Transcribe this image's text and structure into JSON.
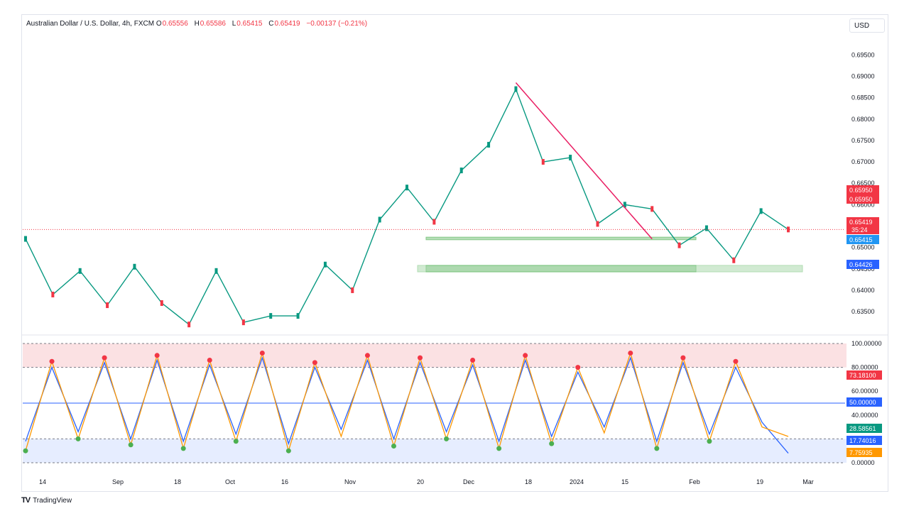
{
  "header": {
    "symbol": "Australian Dollar / U.S. Dollar, 4h, FXCM",
    "open_label": "O",
    "open": "0.65556",
    "high_label": "H",
    "high": "0.65586",
    "low_label": "L",
    "low": "0.65415",
    "close_label": "C",
    "close": "0.65419",
    "change": "−0.00137 (−0.21%)"
  },
  "currency_button": "USD",
  "brand": "TradingView",
  "colors": {
    "up": "#089981",
    "down": "#f23645",
    "accent": "#2962ff",
    "stoch_k": "#2962ff",
    "stoch_d": "#ff9800"
  },
  "chart_data": [
    {
      "type": "line",
      "name": "price",
      "title": "Australian Dollar / U.S. Dollar, 4h, FXCM",
      "y_ticks": [
        "0.69500",
        "0.69000",
        "0.68500",
        "0.68000",
        "0.67500",
        "0.67000",
        "0.66500",
        "0.66000",
        "0.65500",
        "0.65000",
        "0.64500",
        "0.64000",
        "0.63500"
      ],
      "ylim": [
        0.6312,
        0.6992
      ],
      "x_ticks": [
        "14",
        "Sep",
        "18",
        "Oct",
        "16",
        "Nov",
        "20",
        "Dec",
        "18",
        "2024",
        "15",
        "Feb",
        "19",
        "Mar"
      ],
      "x": [
        "Aug 14",
        "Aug 25",
        "Sep 1",
        "Sep 12",
        "Sep 20",
        "Sep 28",
        "Oct 3",
        "Oct 12",
        "Oct 20",
        "Oct 26",
        "Nov 1",
        "Nov 10",
        "Nov 16",
        "Nov 20",
        "Nov 28",
        "Dec 4",
        "Dec 10",
        "Dec 18",
        "Dec 28",
        "Jan 5",
        "Jan 12",
        "Jan 18",
        "Jan 25",
        "Jan 31",
        "Feb 5",
        "Feb 9",
        "Feb 13",
        "Feb 19",
        "Feb 23"
      ],
      "y": [
        0.652,
        0.639,
        0.6445,
        0.6365,
        0.6455,
        0.637,
        0.632,
        0.6445,
        0.6325,
        0.634,
        0.634,
        0.646,
        0.64,
        0.6565,
        0.664,
        0.656,
        0.668,
        0.674,
        0.687,
        0.67,
        0.671,
        0.6555,
        0.66,
        0.659,
        0.6505,
        0.6545,
        0.647,
        0.6585,
        0.6542
      ],
      "trendline": {
        "from": [
          "Dec 28",
          0.6885
        ],
        "to": [
          "Jan 31",
          0.652
        ]
      },
      "zones": [
        {
          "from": 0.6518,
          "to": 0.6524
        },
        {
          "from": 0.6443,
          "to": 0.6458
        }
      ],
      "price_labels": [
        {
          "text": "0.65950",
          "color": "#f23645"
        },
        {
          "text": "0.65950",
          "color": "#f23645"
        },
        {
          "text": "0.65419",
          "sub": "35:24",
          "color": "#f23645"
        },
        {
          "text": "0.65415",
          "color": "#2196f3"
        },
        {
          "text": "0.64426",
          "color": "#2962ff"
        }
      ]
    },
    {
      "type": "line",
      "name": "stochastic",
      "ylim": [
        0,
        100
      ],
      "y_ticks": [
        "100.00000",
        "80.00000",
        "60.00000",
        "40.00000",
        "0.00000"
      ],
      "levels": [
        100,
        80,
        50,
        20,
        0
      ],
      "series": [
        {
          "values": [
            10,
            85,
            20,
            88,
            15,
            90,
            12,
            86,
            18,
            92,
            10,
            84,
            22,
            90,
            14,
            88,
            20,
            86,
            12,
            90,
            16,
            80,
            25,
            92,
            12,
            88,
            18,
            85,
            30,
            22
          ]
        },
        {
          "values": [
            18,
            80,
            26,
            84,
            20,
            86,
            18,
            82,
            24,
            88,
            16,
            80,
            28,
            86,
            20,
            84,
            26,
            82,
            18,
            86,
            22,
            76,
            30,
            88,
            18,
            84,
            24,
            80,
            34,
            8
          ]
        }
      ],
      "value_labels": [
        {
          "text": "73.18100",
          "color": "#f23645"
        },
        {
          "text": "50.00000",
          "color": "#2962ff"
        },
        {
          "text": "28.58561",
          "color": "#089981"
        },
        {
          "text": "17.74016",
          "color": "#2962ff"
        },
        {
          "text": "7.75935",
          "color": "#ff9800"
        }
      ]
    }
  ]
}
